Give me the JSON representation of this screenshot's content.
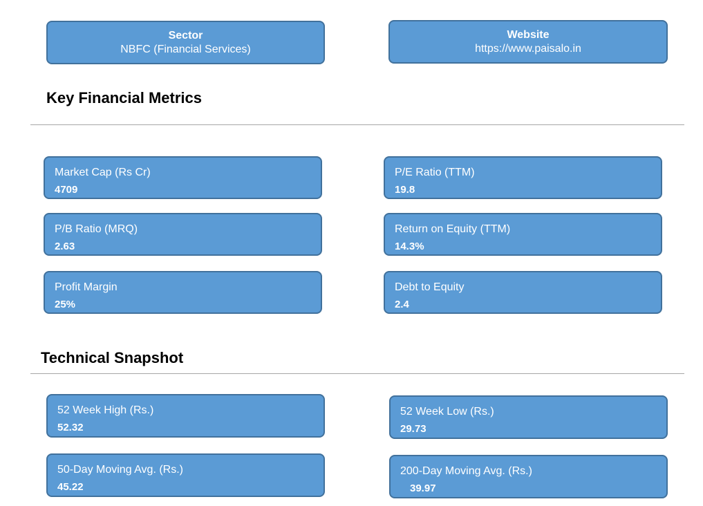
{
  "info": {
    "sector": {
      "title": "Sector",
      "value": "NBFC (Financial Services)"
    },
    "website": {
      "title": "Website",
      "value": "https://www.paisalo.in"
    }
  },
  "key_metrics": {
    "heading": "Key Financial Metrics",
    "market_cap": {
      "label": "Market Cap (Rs Cr)",
      "value": "4709"
    },
    "pe_ratio": {
      "label": "P/E Ratio (TTM)",
      "value": "19.8"
    },
    "pb_ratio": {
      "label": "P/B Ratio (MRQ)",
      "value": "2.63"
    },
    "roe": {
      "label": "Return on Equity (TTM)",
      "value": "14.3%"
    },
    "profit_margin": {
      "label": "Profit Margin",
      "value": "25%"
    },
    "debt_equity": {
      "label": "Debt to Equity",
      "value": "2.4"
    }
  },
  "technical": {
    "heading": "Technical Snapshot",
    "week52_high": {
      "label": "52 Week High (Rs.)",
      "value": "52.32"
    },
    "week52_low": {
      "label": "52 Week Low (Rs.)",
      "value": "29.73"
    },
    "dma50": {
      "label": "50-Day Moving Avg. (Rs.)",
      "value": "45.22"
    },
    "dma200": {
      "label": "200-Day Moving Avg. (Rs.)",
      "value": "39.97"
    }
  }
}
